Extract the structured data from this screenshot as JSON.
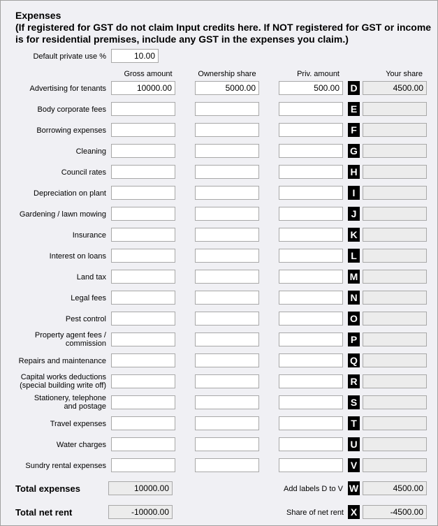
{
  "header": {
    "title": "Expenses",
    "subtitle": "(If registered for GST do not claim Input credits here. If NOT registered for GST or income\nis for residential premises, include any GST in the expenses you claim.)"
  },
  "default_private_use": {
    "label": "Default private use %",
    "value": "10.00"
  },
  "columns": {
    "gross": "Gross amount",
    "ownership": "Ownership share",
    "priv": "Priv. amount",
    "share": "Your share"
  },
  "rows": [
    {
      "label": "Advertising for tenants",
      "gross": "10000.00",
      "ownership": "5000.00",
      "priv": "500.00",
      "letter": "D",
      "share": "4500.00"
    },
    {
      "label": "Body corporate fees",
      "gross": "",
      "ownership": "",
      "priv": "",
      "letter": "E",
      "share": ""
    },
    {
      "label": "Borrowing expenses",
      "gross": "",
      "ownership": "",
      "priv": "",
      "letter": "F",
      "share": ""
    },
    {
      "label": "Cleaning",
      "gross": "",
      "ownership": "",
      "priv": "",
      "letter": "G",
      "share": ""
    },
    {
      "label": "Council rates",
      "gross": "",
      "ownership": "",
      "priv": "",
      "letter": "H",
      "share": ""
    },
    {
      "label": "Depreciation on plant",
      "gross": "",
      "ownership": "",
      "priv": "",
      "letter": "I",
      "share": ""
    },
    {
      "label": "Gardening / lawn mowing",
      "gross": "",
      "ownership": "",
      "priv": "",
      "letter": "J",
      "share": ""
    },
    {
      "label": "Insurance",
      "gross": "",
      "ownership": "",
      "priv": "",
      "letter": "K",
      "share": ""
    },
    {
      "label": "Interest on loans",
      "gross": "",
      "ownership": "",
      "priv": "",
      "letter": "L",
      "share": ""
    },
    {
      "label": "Land tax",
      "gross": "",
      "ownership": "",
      "priv": "",
      "letter": "M",
      "share": ""
    },
    {
      "label": "Legal fees",
      "gross": "",
      "ownership": "",
      "priv": "",
      "letter": "N",
      "share": ""
    },
    {
      "label": "Pest control",
      "gross": "",
      "ownership": "",
      "priv": "",
      "letter": "O",
      "share": ""
    },
    {
      "label": "Property agent fees /\ncommission",
      "gross": "",
      "ownership": "",
      "priv": "",
      "letter": "P",
      "share": ""
    },
    {
      "label": "Repairs and maintenance",
      "gross": "",
      "ownership": "",
      "priv": "",
      "letter": "Q",
      "share": ""
    },
    {
      "label": "Capital works deductions\n(special building write off)",
      "gross": "",
      "ownership": "",
      "priv": "",
      "letter": "R",
      "share": ""
    },
    {
      "label": "Stationery, telephone\nand postage",
      "gross": "",
      "ownership": "",
      "priv": "",
      "letter": "S",
      "share": ""
    },
    {
      "label": "Travel expenses",
      "gross": "",
      "ownership": "",
      "priv": "",
      "letter": "T",
      "share": ""
    },
    {
      "label": "Water charges",
      "gross": "",
      "ownership": "",
      "priv": "",
      "letter": "U",
      "share": ""
    },
    {
      "label": "Sundry rental expenses",
      "gross": "",
      "ownership": "",
      "priv": "",
      "letter": "V",
      "share": ""
    }
  ],
  "totals": {
    "total_expenses_label": "Total expenses",
    "total_expenses": "10000.00",
    "add_labels": "Add labels D to V",
    "w_letter": "W",
    "w_value": "4500.00",
    "total_net_rent_label": "Total net rent",
    "total_net_rent": "-10000.00",
    "share_net_rent": "Share of net rent",
    "x_letter": "X",
    "x_value": "-4500.00"
  }
}
